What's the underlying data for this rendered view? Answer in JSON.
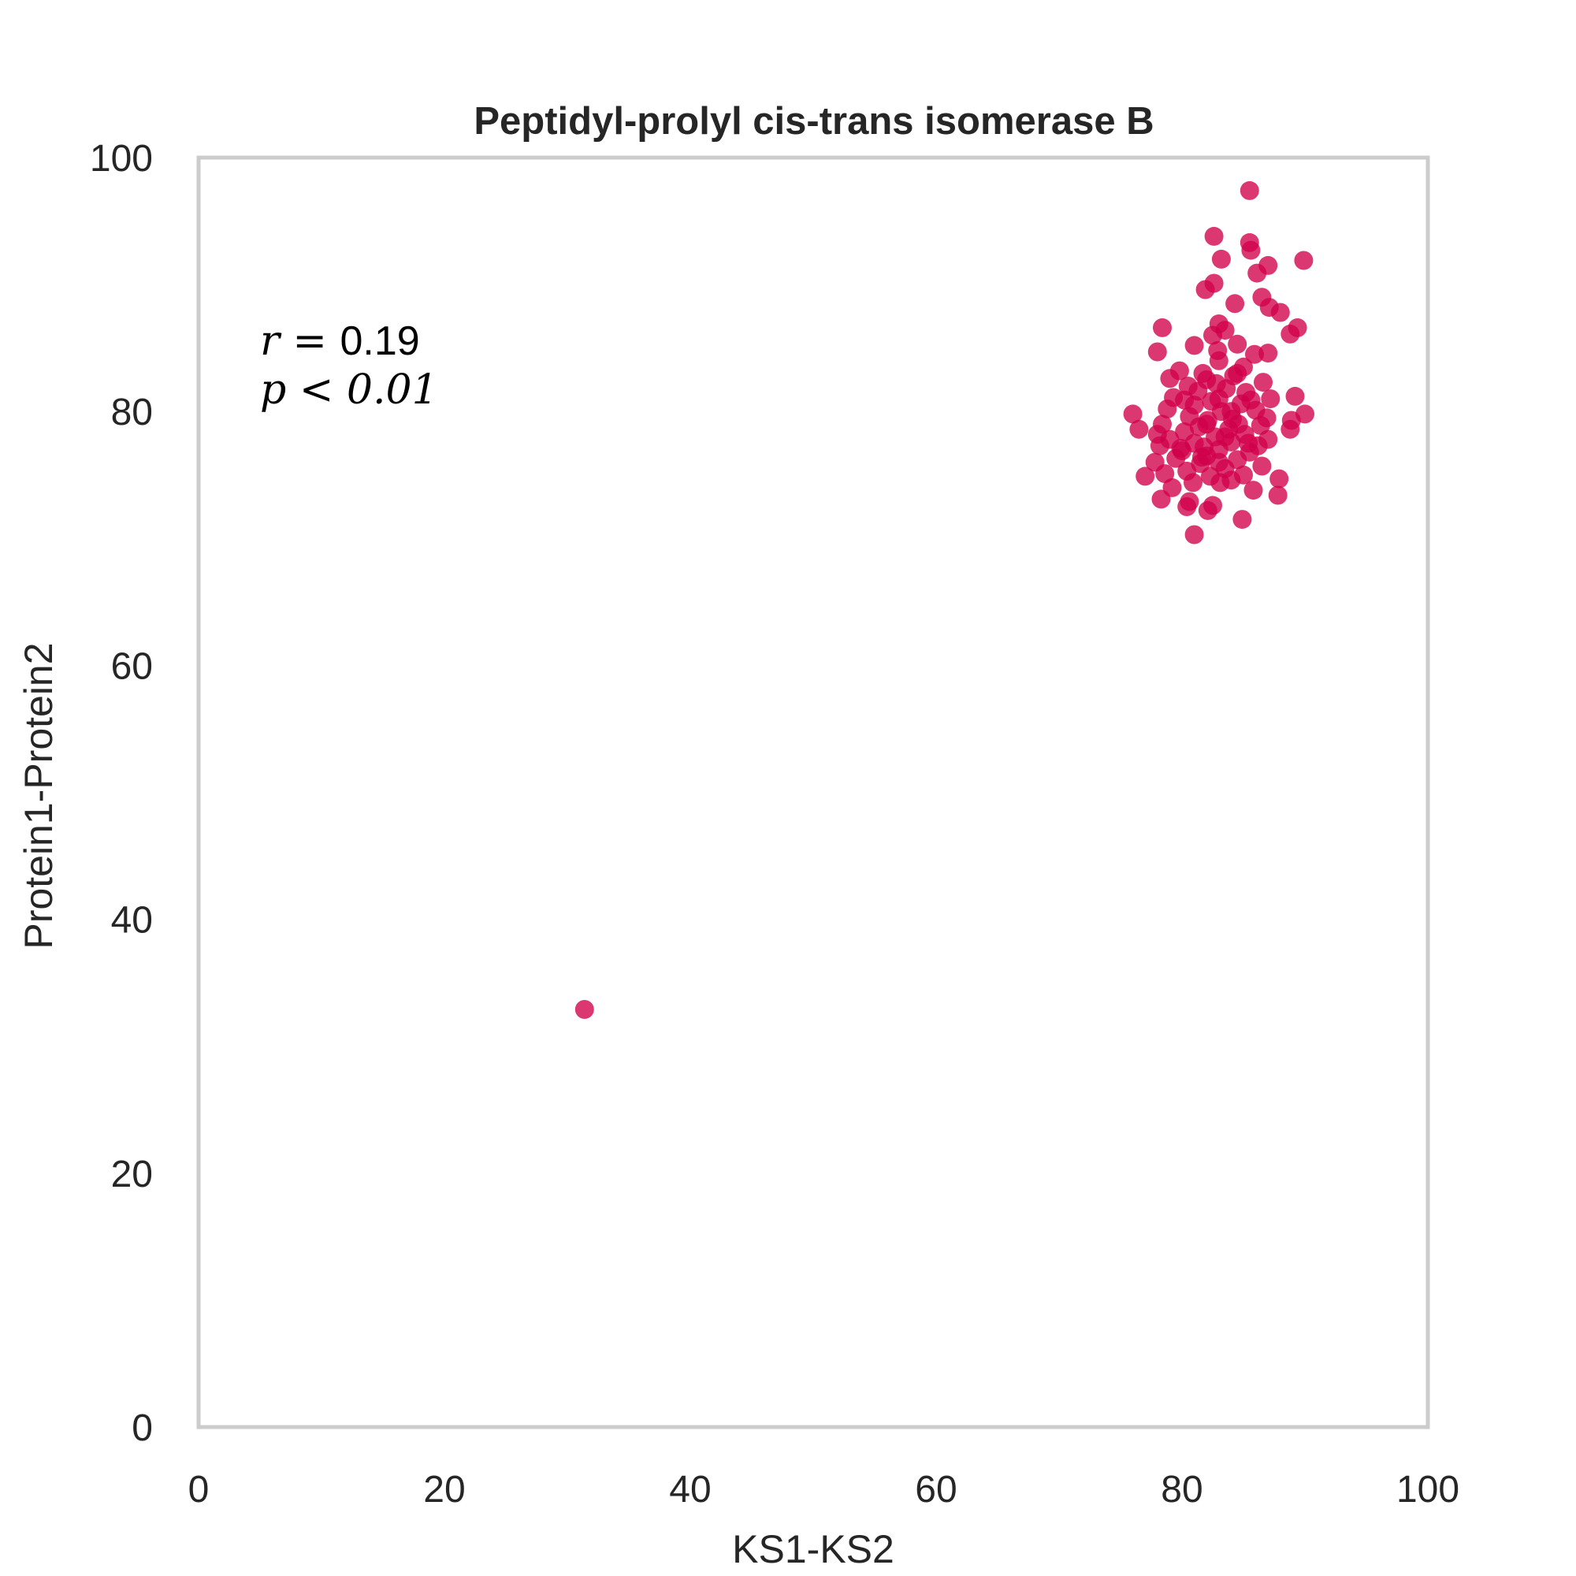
{
  "chart_data": {
    "type": "scatter",
    "title": "Peptidyl-prolyl cis-trans isomerase B",
    "xlabel": "KS1-KS2",
    "ylabel": "Protein1-Protein2",
    "xlim": [
      0,
      100
    ],
    "ylim": [
      0,
      100
    ],
    "xticks": [
      "0",
      "20",
      "40",
      "60",
      "80",
      "100"
    ],
    "yticks": [
      "0",
      "20",
      "40",
      "60",
      "80",
      "100"
    ],
    "grid": false,
    "point_color": "#d1004a",
    "annotation": {
      "r_label": "r = ",
      "r_value": "0.19",
      "p_label": "p < 0.01"
    },
    "points": [
      [
        31.4,
        32.9
      ],
      [
        85.5,
        97.4
      ],
      [
        82.6,
        93.8
      ],
      [
        85.5,
        93.3
      ],
      [
        85.6,
        92.7
      ],
      [
        89.9,
        91.9
      ],
      [
        83.2,
        92.0
      ],
      [
        87.0,
        91.5
      ],
      [
        86.1,
        90.9
      ],
      [
        82.6,
        90.1
      ],
      [
        81.9,
        89.6
      ],
      [
        86.5,
        89.0
      ],
      [
        84.3,
        88.5
      ],
      [
        87.1,
        88.2
      ],
      [
        88.0,
        87.8
      ],
      [
        83.0,
        86.9
      ],
      [
        88.8,
        86.1
      ],
      [
        89.4,
        86.6
      ],
      [
        78.4,
        86.6
      ],
      [
        82.5,
        86.0
      ],
      [
        83.5,
        86.4
      ],
      [
        84.5,
        85.3
      ],
      [
        81.0,
        85.2
      ],
      [
        85.9,
        84.5
      ],
      [
        78.0,
        84.7
      ],
      [
        87.0,
        84.6
      ],
      [
        83.0,
        84.0
      ],
      [
        85.0,
        83.5
      ],
      [
        79.8,
        83.2
      ],
      [
        81.7,
        83.0
      ],
      [
        84.2,
        82.8
      ],
      [
        82.0,
        82.5
      ],
      [
        86.6,
        82.3
      ],
      [
        80.5,
        82.0
      ],
      [
        83.6,
        81.8
      ],
      [
        85.2,
        81.5
      ],
      [
        79.3,
        81.1
      ],
      [
        87.2,
        81.0
      ],
      [
        89.2,
        81.2
      ],
      [
        82.4,
        80.8
      ],
      [
        84.8,
        80.6
      ],
      [
        81.0,
        80.5
      ],
      [
        78.8,
        80.2
      ],
      [
        86.0,
        80.1
      ],
      [
        83.2,
        80.0
      ],
      [
        76.0,
        79.8
      ],
      [
        90.0,
        79.8
      ],
      [
        80.6,
        79.6
      ],
      [
        84.1,
        79.4
      ],
      [
        82.1,
        79.3
      ],
      [
        88.9,
        79.3
      ],
      [
        78.4,
        79.0
      ],
      [
        86.4,
        78.9
      ],
      [
        81.4,
        78.8
      ],
      [
        83.8,
        78.6
      ],
      [
        76.5,
        78.6
      ],
      [
        88.8,
        78.6
      ],
      [
        80.2,
        78.4
      ],
      [
        85.1,
        78.2
      ],
      [
        82.7,
        78.0
      ],
      [
        79.0,
        77.8
      ],
      [
        87.0,
        77.8
      ],
      [
        84.0,
        77.6
      ],
      [
        81.0,
        77.5
      ],
      [
        86.2,
        77.3
      ],
      [
        78.2,
        77.3
      ],
      [
        83.0,
        77.0
      ],
      [
        80.0,
        76.9
      ],
      [
        85.5,
        76.8
      ],
      [
        82.0,
        76.5
      ],
      [
        79.5,
        76.3
      ],
      [
        84.5,
        76.2
      ],
      [
        77.8,
        76.0
      ],
      [
        81.5,
        75.9
      ],
      [
        86.5,
        75.7
      ],
      [
        83.5,
        75.5
      ],
      [
        80.4,
        75.3
      ],
      [
        78.6,
        75.1
      ],
      [
        85.0,
        75.0
      ],
      [
        82.3,
        74.9
      ],
      [
        77.0,
        74.9
      ],
      [
        87.9,
        74.7
      ],
      [
        84.0,
        74.6
      ],
      [
        80.9,
        74.4
      ],
      [
        79.2,
        74.0
      ],
      [
        85.8,
        73.8
      ],
      [
        87.8,
        73.4
      ],
      [
        78.3,
        73.1
      ],
      [
        80.6,
        72.9
      ],
      [
        82.5,
        72.6
      ],
      [
        80.4,
        72.5
      ],
      [
        82.1,
        72.2
      ],
      [
        84.9,
        71.5
      ],
      [
        81.0,
        70.3
      ],
      [
        83.0,
        81.0
      ],
      [
        84.0,
        80.0
      ],
      [
        82.0,
        79.0
      ],
      [
        83.5,
        78.0
      ],
      [
        81.8,
        77.2
      ],
      [
        84.6,
        79.0
      ],
      [
        83.0,
        76.0
      ],
      [
        82.8,
        82.2
      ],
      [
        81.3,
        81.6
      ],
      [
        85.6,
        80.9
      ],
      [
        80.2,
        80.9
      ],
      [
        79.0,
        82.6
      ],
      [
        86.9,
        79.5
      ],
      [
        78.0,
        78.2
      ],
      [
        84.5,
        83.0
      ],
      [
        83.1,
        74.4
      ],
      [
        85.4,
        77.5
      ],
      [
        79.9,
        77.1
      ],
      [
        82.9,
        84.8
      ],
      [
        81.6,
        76.4
      ]
    ]
  }
}
